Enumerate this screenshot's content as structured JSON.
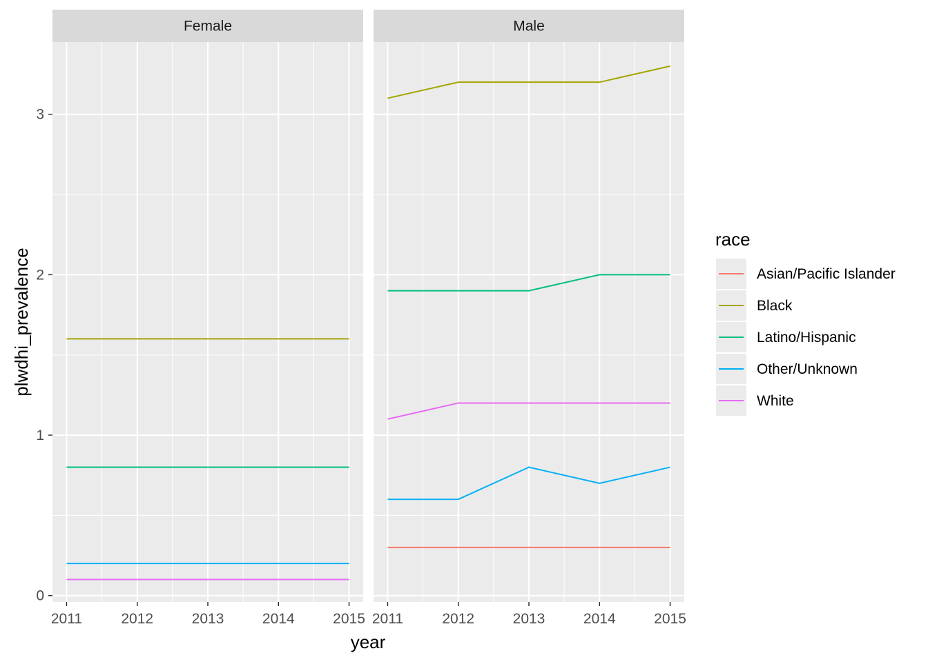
{
  "chart_data": {
    "type": "line",
    "facet_by": "sex",
    "xlabel": "year",
    "ylabel": "plwdhi_prevalence",
    "x": [
      2011,
      2012,
      2013,
      2014,
      2015
    ],
    "x_ticks": [
      "2011",
      "2012",
      "2013",
      "2014",
      "2015"
    ],
    "ylim": [
      -0.04,
      3.45
    ],
    "y_ticks": [
      0,
      1,
      2,
      3
    ],
    "grid": true,
    "legend": {
      "title": "race",
      "placement": "right",
      "entries": [
        {
          "name": "Asian/Pacific Islander",
          "color": "#F8766D"
        },
        {
          "name": "Black",
          "color": "#A3A500"
        },
        {
          "name": "Latino/Hispanic",
          "color": "#00BF7D"
        },
        {
          "name": "Other/Unknown",
          "color": "#00B0F6"
        },
        {
          "name": "White",
          "color": "#E76BF3"
        }
      ]
    },
    "panels": [
      {
        "label": "Female",
        "series": [
          {
            "name": "Black",
            "values": [
              1.6,
              1.6,
              1.6,
              1.6,
              1.6
            ]
          },
          {
            "name": "Latino/Hispanic",
            "values": [
              0.8,
              0.8,
              0.8,
              0.8,
              0.8
            ]
          },
          {
            "name": "Other/Unknown",
            "values": [
              0.2,
              0.2,
              0.2,
              0.2,
              0.2
            ]
          },
          {
            "name": "White",
            "values": [
              0.1,
              0.1,
              0.1,
              0.1,
              0.1
            ]
          }
        ]
      },
      {
        "label": "Male",
        "series": [
          {
            "name": "Asian/Pacific Islander",
            "values": [
              0.3,
              0.3,
              0.3,
              0.3,
              0.3
            ]
          },
          {
            "name": "Black",
            "values": [
              3.1,
              3.2,
              3.2,
              3.2,
              3.3
            ]
          },
          {
            "name": "Latino/Hispanic",
            "values": [
              1.9,
              1.9,
              1.9,
              2.0,
              2.0
            ]
          },
          {
            "name": "Other/Unknown",
            "values": [
              0.6,
              0.6,
              0.8,
              0.7,
              0.8
            ]
          },
          {
            "name": "White",
            "values": [
              1.1,
              1.2,
              1.2,
              1.2,
              1.2
            ]
          }
        ]
      }
    ]
  }
}
